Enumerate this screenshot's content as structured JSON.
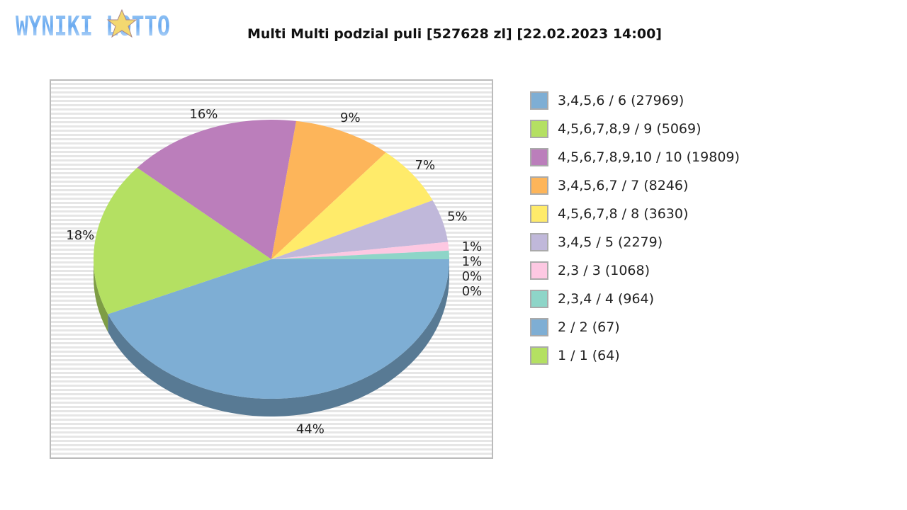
{
  "logo": {
    "text": "WYNIKI LOTTO"
  },
  "title": "Multi Multi podzial puli [527628 zl] [22.02.2023 14:00]",
  "chart_data": {
    "type": "pie",
    "title": "Multi Multi podzial puli [527628 zl] [22.02.2023 14:00]",
    "legend_position": "right",
    "slices": [
      {
        "label": "3,4,5,6 / 6 (27969)",
        "percent": 44,
        "pct_label": "44%",
        "color": "#7eaed4"
      },
      {
        "label": "4,5,6,7,8,9 / 9 (5069)",
        "percent": 18,
        "pct_label": "18%",
        "color": "#b4e062"
      },
      {
        "label": "4,5,6,7,8,9,10 / 10 (19809)",
        "percent": 16,
        "pct_label": "16%",
        "color": "#bb7ebb"
      },
      {
        "label": "3,4,5,6,7 / 7 (8246)",
        "percent": 9,
        "pct_label": "9%",
        "color": "#fdb55a"
      },
      {
        "label": "4,5,6,7,8 / 8 (3630)",
        "percent": 7,
        "pct_label": "7%",
        "color": "#ffeb6a"
      },
      {
        "label": "3,4,5 / 5 (2279)",
        "percent": 5,
        "pct_label": "5%",
        "color": "#c0b8da"
      },
      {
        "label": "2,3 / 3 (1068)",
        "percent": 1,
        "pct_label": "1%",
        "color": "#fdc8e2"
      },
      {
        "label": "2,3,4 / 4 (964)",
        "percent": 1,
        "pct_label": "1%",
        "color": "#8ed5c8"
      },
      {
        "label": "2 / 2 (67)",
        "percent": 0,
        "pct_label": "0%",
        "color": "#7eaed4"
      },
      {
        "label": "1 / 1 (64)",
        "percent": 0,
        "pct_label": "0%",
        "color": "#b4e062"
      }
    ]
  }
}
